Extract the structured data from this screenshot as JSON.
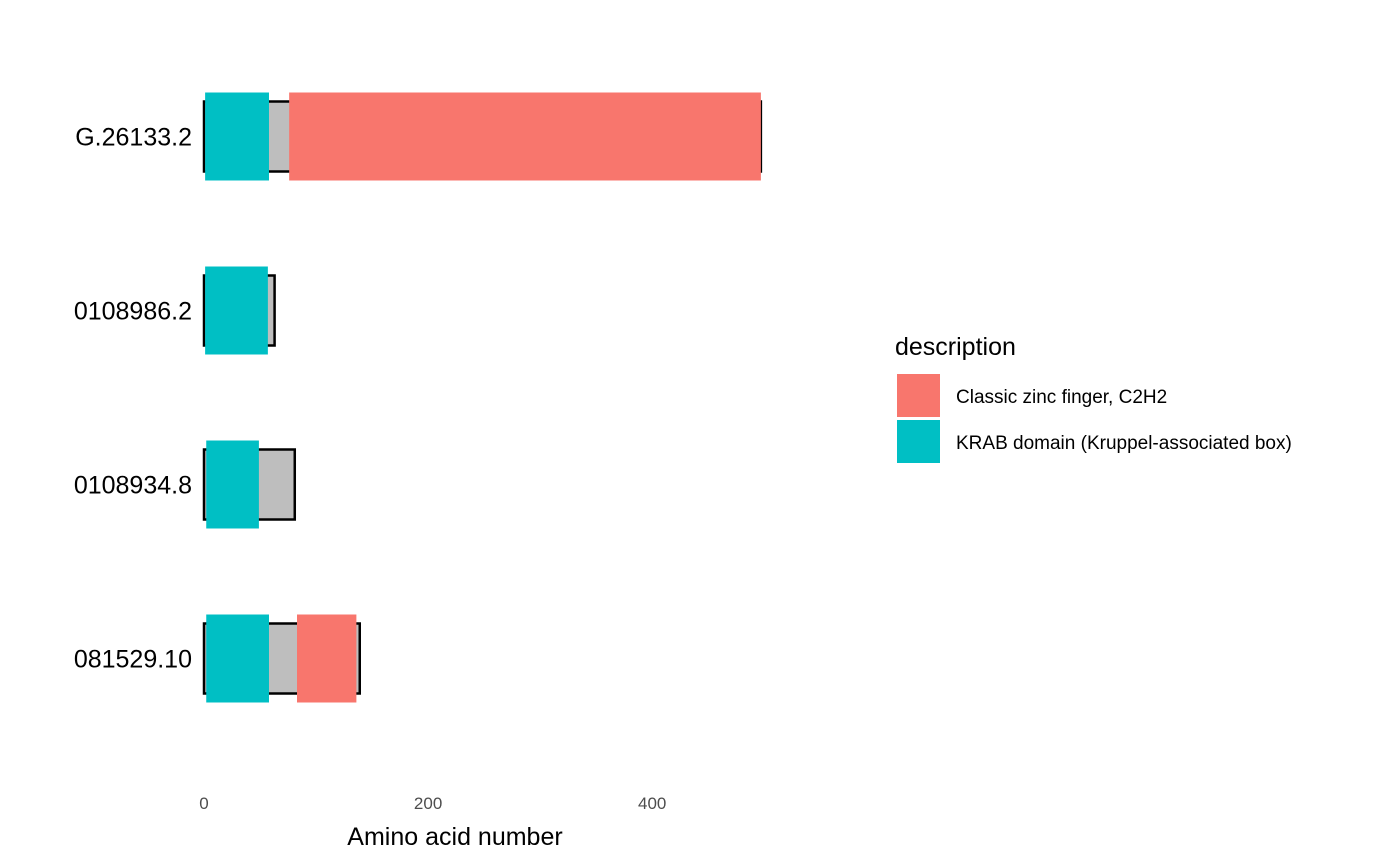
{
  "chart_data": {
    "type": "bar",
    "xlabel": "Amino acid number",
    "x_ticks": [
      0,
      200,
      400
    ],
    "xlim": [
      0,
      500
    ],
    "proteins": [
      {
        "label": "G.26133.2",
        "length": 497,
        "domains": [
          {
            "description": "KRAB domain (Kruppel-associated box)",
            "start": 1,
            "end": 58
          },
          {
            "description": "Classic zinc finger, C2H2",
            "start": 76,
            "end": 497
          }
        ]
      },
      {
        "label": "0108986.2",
        "length": 63,
        "domains": [
          {
            "description": "KRAB domain (Kruppel-associated box)",
            "start": 1,
            "end": 57
          }
        ]
      },
      {
        "label": "0108934.8",
        "length": 81,
        "domains": [
          {
            "description": "KRAB domain (Kruppel-associated box)",
            "start": 2,
            "end": 49
          }
        ]
      },
      {
        "label": "081529.10",
        "length": 139,
        "domains": [
          {
            "description": "KRAB domain (Kruppel-associated box)",
            "start": 2,
            "end": 58
          },
          {
            "description": "Classic zinc finger, C2H2",
            "start": 83,
            "end": 136
          }
        ]
      }
    ],
    "legend": {
      "title": "description",
      "position": "right",
      "entries": [
        {
          "label": "Classic zinc finger, C2H2",
          "color": "#F8766D"
        },
        {
          "label": "KRAB domain (Kruppel-associated box)",
          "color": "#00BFC4"
        }
      ]
    },
    "colors": {
      "backbone_fill": "#BEBEBE",
      "backbone_stroke": "#000000",
      "Classic zinc finger, C2H2": "#F8766D",
      "KRAB domain (Kruppel-associated box)": "#00BFC4"
    },
    "grid": false
  }
}
